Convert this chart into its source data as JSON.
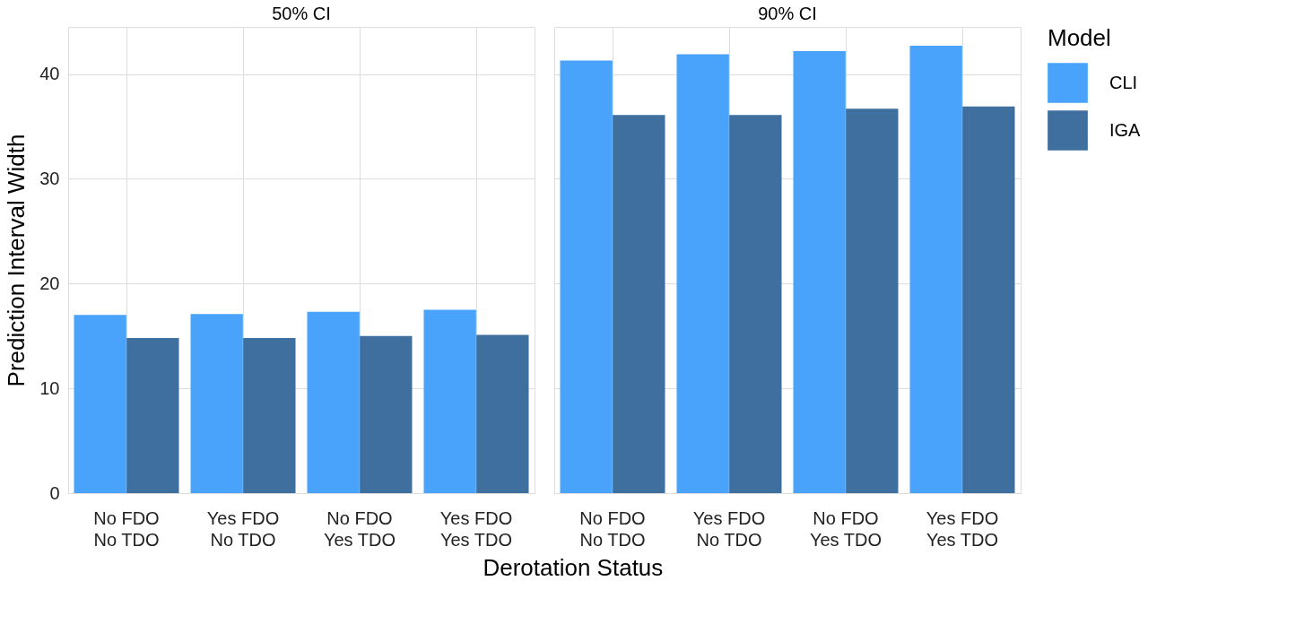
{
  "chart_data": [
    {
      "type": "bar",
      "title": "50% CI",
      "xlabel": "Derotation Status",
      "ylabel": "Prediction Interval Width",
      "categories": [
        "No FDO\nNo TDO",
        "Yes FDO\nNo TDO",
        "No FDO\nYes TDO",
        "Yes FDO\nYes TDO"
      ],
      "series": [
        {
          "color": "#4aa3fa",
          "values": [
            17.0,
            17.1,
            17.3,
            17.5
          ]
        },
        {
          "color": "#3f6f9e",
          "values": [
            14.8,
            14.8,
            15.0,
            15.1
          ]
        }
      ],
      "ylim": [
        0,
        44.5
      ],
      "yticks": [
        0,
        10,
        20,
        30,
        40
      ],
      "grid": true,
      "legend": false
    },
    {
      "type": "bar",
      "title": "90% CI",
      "legend_title": "Model",
      "categories": [
        "No FDO\nNo TDO",
        "Yes FDO\nNo TDO",
        "No FDO\nYes TDO",
        "Yes FDO\nYes TDO"
      ],
      "series": [
        {
          "name": "CLI",
          "color": "#4aa3fa",
          "values": [
            41.3,
            41.9,
            42.2,
            42.7
          ]
        },
        {
          "name": "IGA",
          "color": "#3f6f9e",
          "values": [
            36.1,
            36.1,
            36.7,
            36.9
          ]
        }
      ],
      "ylim": [
        0,
        44.5
      ],
      "yticks": [
        0,
        10,
        20,
        30,
        40
      ],
      "grid": true,
      "legend": "right",
      "tick_labels": "x"
    }
  ]
}
